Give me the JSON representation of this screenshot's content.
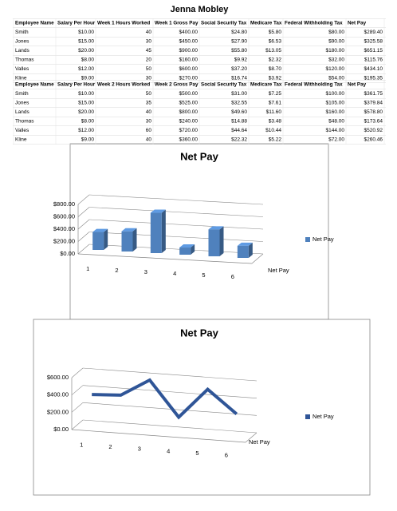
{
  "title": "Jenna Mobley",
  "tables": [
    {
      "header": [
        "Employee Name",
        "Salary Per Hour",
        "Week 1 Hours Worked",
        "Week 1 Gross Pay",
        "Social Security Tax",
        "Medicare Tax",
        "Federal Withholding Tax",
        "Net Pay"
      ],
      "rows": [
        [
          "Smith",
          "$10.00",
          "40",
          "$400.00",
          "$24.80",
          "$5.80",
          "$80.00",
          "$289.40"
        ],
        [
          "Jones",
          "$15.00",
          "30",
          "$450.00",
          "$27.90",
          "$6.53",
          "$90.00",
          "$325.58"
        ],
        [
          "Lands",
          "$20.00",
          "45",
          "$900.00",
          "$55.80",
          "$13.05",
          "$180.00",
          "$651.15"
        ],
        [
          "Thomas",
          "$8.00",
          "20",
          "$160.00",
          "$9.92",
          "$2.32",
          "$32.00",
          "$115.76"
        ],
        [
          "Valles",
          "$12.00",
          "50",
          "$600.00",
          "$37.20",
          "$8.70",
          "$120.00",
          "$434.10"
        ],
        [
          "Kline",
          "$9.00",
          "30",
          "$270.00",
          "$16.74",
          "$3.92",
          "$54.00",
          "$195.35"
        ]
      ]
    },
    {
      "header": [
        "Employee Name",
        "Salary Per Hour",
        "Week 2 Hours Worked",
        "Week 2 Gross Pay",
        "Social Security Tax",
        "Medicare Tax",
        "Federal Withholding Tax",
        "Net Pay"
      ],
      "rows": [
        [
          "Smith",
          "$10.00",
          "50",
          "$500.00",
          "$31.00",
          "$7.25",
          "$100.00",
          "$361.75"
        ],
        [
          "Jones",
          "$15.00",
          "35",
          "$525.00",
          "$32.55",
          "$7.61",
          "$105.00",
          "$379.84"
        ],
        [
          "Lands",
          "$20.00",
          "40",
          "$800.00",
          "$49.60",
          "$11.60",
          "$160.00",
          "$578.80"
        ],
        [
          "Thomas",
          "$8.00",
          "30",
          "$240.00",
          "$14.88",
          "$3.48",
          "$48.00",
          "$173.64"
        ],
        [
          "Valles",
          "$12.00",
          "60",
          "$720.00",
          "$44.64",
          "$10.44",
          "$144.00",
          "$520.92"
        ],
        [
          "Kline",
          "$9.00",
          "40",
          "$360.00",
          "$22.32",
          "$5.22",
          "$72.00",
          "$260.46"
        ]
      ]
    }
  ],
  "chart_data": [
    {
      "type": "bar",
      "title": "Net Pay",
      "categories": [
        "1",
        "2",
        "3",
        "4",
        "5",
        "6"
      ],
      "series": [
        {
          "name": "Net Pay",
          "color": "#4f81bd",
          "values": [
            289.4,
            325.58,
            651.15,
            115.76,
            434.1,
            195.35
          ]
        }
      ],
      "ylim": [
        0,
        800
      ],
      "yticks": [
        {
          "value": 0,
          "label": "$0.00"
        },
        {
          "value": 200,
          "label": "$200.00"
        },
        {
          "value": 400,
          "label": "$400.00"
        },
        {
          "value": 600,
          "label": "$600.00"
        },
        {
          "value": 800,
          "label": "$800.00"
        }
      ],
      "grid": true,
      "legend": "right"
    },
    {
      "type": "line",
      "title": "Net Pay",
      "categories": [
        "1",
        "2",
        "3",
        "4",
        "5",
        "6"
      ],
      "series": [
        {
          "name": "Net Pay",
          "color": "#2f5597",
          "values": [
            361.75,
            379.84,
            578.8,
            173.64,
            520.92,
            260.46
          ]
        }
      ],
      "ylim": [
        0,
        600
      ],
      "yticks": [
        {
          "value": 0,
          "label": "$0.00"
        },
        {
          "value": 200,
          "label": "$200.00"
        },
        {
          "value": 400,
          "label": "$400.00"
        },
        {
          "value": 600,
          "label": "$600.00"
        }
      ],
      "grid": true,
      "legend": "right"
    }
  ]
}
